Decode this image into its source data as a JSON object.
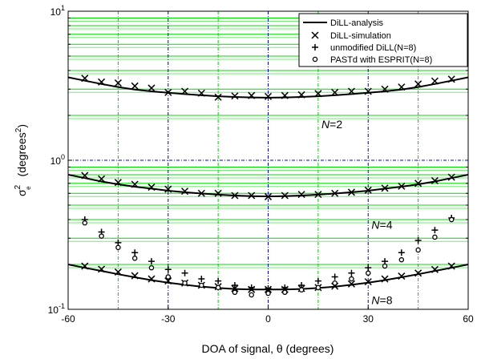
{
  "chart_data": {
    "type": "line",
    "xlabel": "DOA of signal, θ (degrees)",
    "ylabel_main": "σ",
    "ylabel_sup": "2",
    "ylabel_sub": "e",
    "ylabel_unit": "(degrees",
    "ylabel_unit_sup": "2",
    "ylabel_unit_close": ")",
    "xlim": [
      -60,
      60
    ],
    "ylim": [
      0.1,
      10
    ],
    "yscale": "log",
    "x_ticks": [
      -60,
      -30,
      0,
      30,
      60
    ],
    "x_tick_labels": [
      "-60",
      "-30",
      "0",
      "30",
      "60"
    ],
    "y_ticks": [
      {
        "value": 0.1,
        "base": "10",
        "exp": "-1"
      },
      {
        "value": 1,
        "base": "10",
        "exp": "0"
      },
      {
        "value": 10,
        "base": "10",
        "exp": "1"
      }
    ],
    "grid": true,
    "grid_colors": {
      "horizontal_minor": "#00dd00",
      "vertical_minor": "#00cc00",
      "major": "#0000cc"
    },
    "x_minor_grid": [
      -45,
      -15,
      15,
      45
    ],
    "legend_position": "top-right",
    "legend": [
      {
        "label": "DiLL-analysis",
        "marker": "line"
      },
      {
        "label": "DiLL-simulation",
        "marker": "x"
      },
      {
        "label": "unmodified DiLL(N=8)",
        "marker": "plus"
      },
      {
        "label": "PASTd with ESPRIT(N=8)",
        "marker": "circle"
      }
    ],
    "annotations": [
      {
        "italic": "N",
        "rest": "=2",
        "x": 16,
        "y": 1.75
      },
      {
        "italic": "N",
        "rest": "=4",
        "x": 31,
        "y": 0.37
      },
      {
        "italic": "N",
        "rest": "=8",
        "x": 31,
        "y": 0.115
      }
    ],
    "series": [
      {
        "name": "DiLL-analysis",
        "style": "line",
        "curves": [
          {
            "x": [
              -60,
              -55,
              -50,
              -45,
              -40,
              -35,
              -30,
              -25,
              -20,
              -15,
              -10,
              -5,
              0,
              5,
              10,
              15,
              20,
              25,
              30,
              35,
              40,
              45,
              50,
              55,
              60
            ],
            "y": [
              3.6,
              3.42,
              3.25,
              3.1,
              2.98,
              2.9,
              2.84,
              2.78,
              2.73,
              2.69,
              2.66,
              2.64,
              2.63,
              2.64,
              2.66,
              2.69,
              2.73,
              2.78,
              2.84,
              2.9,
              2.98,
              3.1,
              3.25,
              3.42,
              3.6
            ]
          },
          {
            "x": [
              -60,
              -55,
              -50,
              -45,
              -40,
              -35,
              -30,
              -25,
              -20,
              -15,
              -10,
              -5,
              0,
              5,
              10,
              15,
              20,
              25,
              30,
              35,
              40,
              45,
              50,
              55,
              60
            ],
            "y": [
              0.8,
              0.76,
              0.72,
              0.69,
              0.665,
              0.645,
              0.625,
              0.61,
              0.598,
              0.588,
              0.58,
              0.575,
              0.572,
              0.575,
              0.58,
              0.588,
              0.598,
              0.61,
              0.625,
              0.645,
              0.665,
              0.69,
              0.72,
              0.76,
              0.8
            ]
          },
          {
            "x": [
              -60,
              -55,
              -50,
              -45,
              -40,
              -35,
              -30,
              -25,
              -20,
              -15,
              -10,
              -5,
              0,
              5,
              10,
              15,
              20,
              25,
              30,
              35,
              40,
              45,
              50,
              55,
              60
            ],
            "y": [
              0.2,
              0.19,
              0.181,
              0.172,
              0.164,
              0.157,
              0.151,
              0.146,
              0.142,
              0.139,
              0.137,
              0.136,
              0.136,
              0.136,
              0.137,
              0.139,
              0.142,
              0.146,
              0.151,
              0.157,
              0.164,
              0.172,
              0.181,
              0.19,
              0.2
            ]
          }
        ]
      },
      {
        "name": "DiLL-simulation",
        "style": "x",
        "groups": [
          {
            "x": [
              -55,
              -50,
              -45,
              -40,
              -35,
              -30,
              -25,
              -20,
              -15,
              -10,
              -5,
              0,
              5,
              10,
              15,
              20,
              25,
              30,
              35,
              40,
              45,
              50,
              55
            ],
            "y": [
              3.55,
              3.35,
              3.3,
              3.15,
              3.05,
              2.85,
              2.9,
              2.82,
              2.65,
              2.7,
              2.72,
              2.68,
              2.72,
              2.75,
              2.8,
              2.85,
              2.9,
              2.9,
              3.0,
              3.1,
              3.25,
              3.4,
              3.5
            ]
          },
          {
            "x": [
              -55,
              -50,
              -45,
              -40,
              -35,
              -30,
              -25,
              -20,
              -15,
              -10,
              -5,
              0,
              5,
              10,
              15,
              20,
              25,
              30,
              35,
              40,
              45,
              50,
              55
            ],
            "y": [
              0.79,
              0.75,
              0.71,
              0.69,
              0.66,
              0.64,
              0.62,
              0.6,
              0.6,
              0.58,
              0.58,
              0.57,
              0.58,
              0.59,
              0.59,
              0.6,
              0.61,
              0.63,
              0.65,
              0.67,
              0.7,
              0.73,
              0.77
            ]
          },
          {
            "x": [
              -55,
              -50,
              -45,
              -40,
              -35,
              -30,
              -25,
              -20,
              -15,
              -10,
              -5,
              0,
              5,
              10,
              15,
              20,
              25,
              30,
              35,
              40,
              45,
              50,
              55
            ],
            "y": [
              0.195,
              0.186,
              0.178,
              0.168,
              0.16,
              0.155,
              0.15,
              0.145,
              0.142,
              0.138,
              0.136,
              0.136,
              0.136,
              0.138,
              0.14,
              0.143,
              0.148,
              0.153,
              0.16,
              0.167,
              0.175,
              0.185,
              0.195
            ]
          }
        ]
      },
      {
        "name": "unmodified DiLL(N=8)",
        "style": "plus",
        "x": [
          -55,
          -50,
          -45,
          -40,
          -35,
          -30,
          -25,
          -20,
          -15,
          -10,
          -5,
          0,
          5,
          10,
          15,
          20,
          25,
          30,
          35,
          40,
          45,
          50,
          55
        ],
        "y": [
          0.4,
          0.33,
          0.28,
          0.24,
          0.21,
          0.185,
          0.175,
          0.16,
          0.155,
          0.145,
          0.14,
          0.138,
          0.14,
          0.145,
          0.155,
          0.165,
          0.175,
          0.19,
          0.21,
          0.24,
          0.29,
          0.34,
          0.41
        ]
      },
      {
        "name": "PASTd with ESPRIT(N=8)",
        "style": "circle",
        "x": [
          -55,
          -50,
          -45,
          -40,
          -35,
          -30,
          -25,
          -20,
          -15,
          -10,
          -5,
          0,
          5,
          10,
          15,
          20,
          25,
          30,
          35,
          40,
          45,
          50,
          55
        ],
        "y": [
          0.38,
          0.31,
          0.26,
          0.22,
          0.19,
          0.165,
          0.15,
          0.145,
          0.14,
          0.13,
          0.125,
          0.128,
          0.13,
          0.135,
          0.14,
          0.15,
          0.16,
          0.175,
          0.195,
          0.215,
          0.25,
          0.305,
          0.4
        ]
      }
    ]
  }
}
